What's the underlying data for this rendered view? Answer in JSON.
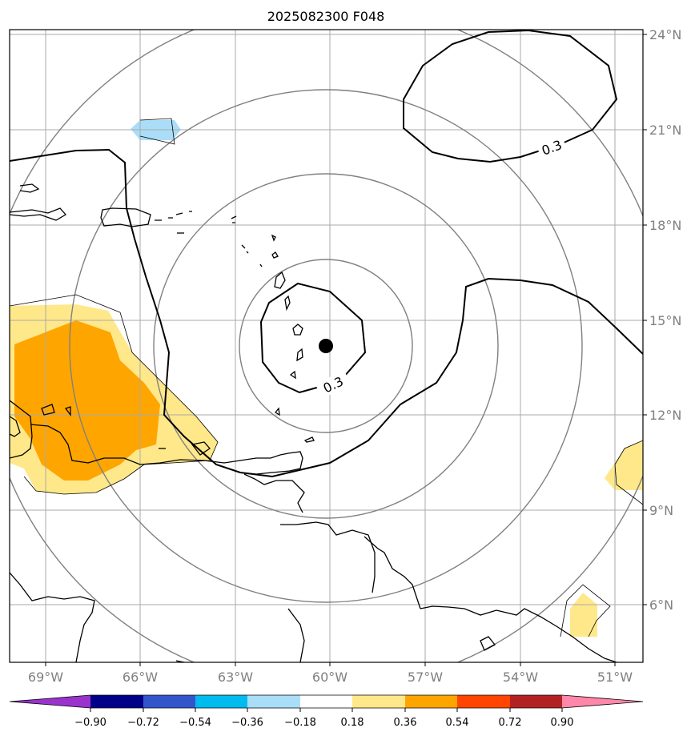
{
  "title": "2025082300 F048",
  "map": {
    "lon_range": [
      -70.5,
      -49.5
    ],
    "lat_range": [
      3.9,
      24.2
    ],
    "grid": true,
    "lon_ticks": [
      {
        "value": -69,
        "label": "69°W"
      },
      {
        "value": -66,
        "label": "66°W"
      },
      {
        "value": -63,
        "label": "63°W"
      },
      {
        "value": -60,
        "label": "60°W"
      },
      {
        "value": -57,
        "label": "57°W"
      },
      {
        "value": -54,
        "label": "54°W"
      },
      {
        "value": -51,
        "label": "51°W"
      }
    ],
    "lat_ticks": [
      {
        "value": 24,
        "label": "24°N"
      },
      {
        "value": 21,
        "label": "21°N"
      },
      {
        "value": 18,
        "label": "18°N"
      },
      {
        "value": 15,
        "label": "15°N"
      },
      {
        "value": 12,
        "label": "12°N"
      },
      {
        "value": 9,
        "label": "9°N"
      },
      {
        "value": 6,
        "label": "6°N"
      }
    ],
    "storm_center": {
      "lon": -60.1,
      "lat": 14.2
    },
    "contour_labels": [
      {
        "text": "0.3",
        "lon": -53.0,
        "lat": 20.3
      },
      {
        "text": "0.3",
        "lon": -60.0,
        "lat": 13.1
      }
    ]
  },
  "colorbar": {
    "colors": [
      "#9933cc",
      "#000088",
      "#3355cc",
      "#00bbee",
      "#aaddf8",
      "#ffffff",
      "#ffe88a",
      "#ffa500",
      "#ff4500",
      "#b22222",
      "#ff88aa"
    ],
    "ticks": [
      "−0.90",
      "−0.72",
      "−0.54",
      "−0.36",
      "−0.18",
      "0.18",
      "0.36",
      "0.54",
      "0.72",
      "0.90"
    ]
  }
}
